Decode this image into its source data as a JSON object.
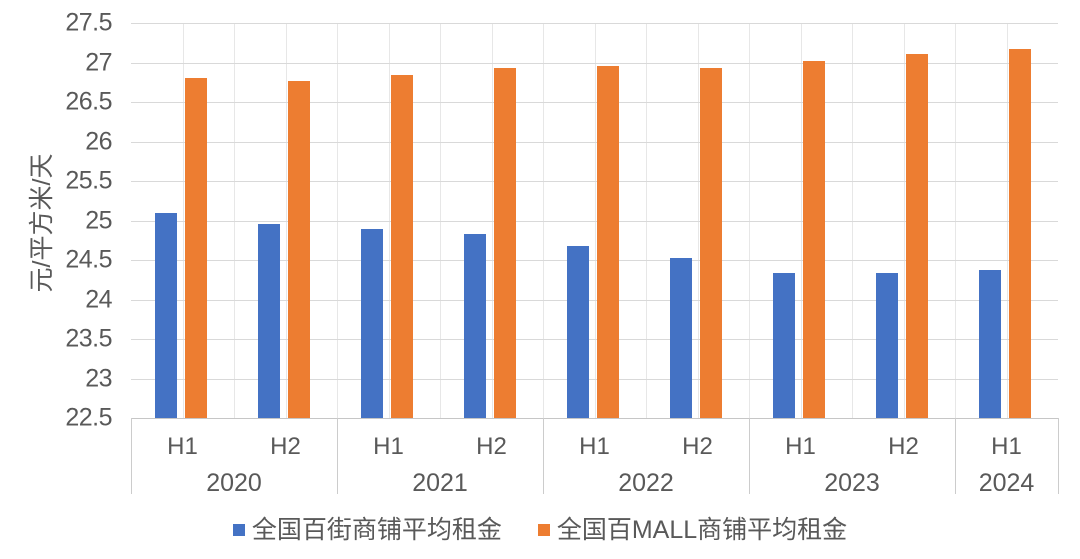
{
  "chart_data": {
    "type": "bar",
    "title": "",
    "xlabel": "",
    "ylabel": "元/平方米/天",
    "ylim": [
      22.5,
      27.5
    ],
    "y_tick_step": 0.5,
    "y_tick_labels": [
      "27.5",
      "27",
      "26.5",
      "26",
      "25.5",
      "25",
      "24.5",
      "24",
      "23.5",
      "23",
      "22.5"
    ],
    "grid": true,
    "legend_position": "bottom",
    "groups": [
      {
        "year": "2020",
        "halves": [
          "H1",
          "H2"
        ]
      },
      {
        "year": "2021",
        "halves": [
          "H1",
          "H2"
        ]
      },
      {
        "year": "2022",
        "halves": [
          "H1",
          "H2"
        ]
      },
      {
        "year": "2023",
        "halves": [
          "H1",
          "H2"
        ]
      },
      {
        "year": "2024",
        "halves": [
          "H1"
        ]
      }
    ],
    "series": [
      {
        "name": "全国百街商铺平均租金",
        "key": "street",
        "color": "#4472C4",
        "values": [
          25.1,
          24.96,
          24.89,
          24.83,
          24.68,
          24.52,
          24.33,
          24.34,
          24.37
        ]
      },
      {
        "name": "全国百MALL商铺平均租金",
        "key": "mall",
        "color": "#ED7D31",
        "values": [
          26.81,
          26.76,
          26.84,
          26.93,
          26.96,
          26.93,
          27.02,
          27.11,
          27.17
        ]
      }
    ]
  },
  "colors": {
    "grid_horizontal": "#D9D9D9",
    "grid_vertical": "#E7E7E7",
    "axis_line": "#C6C6C6",
    "text": "#595959",
    "background": "#FFFFFF"
  }
}
